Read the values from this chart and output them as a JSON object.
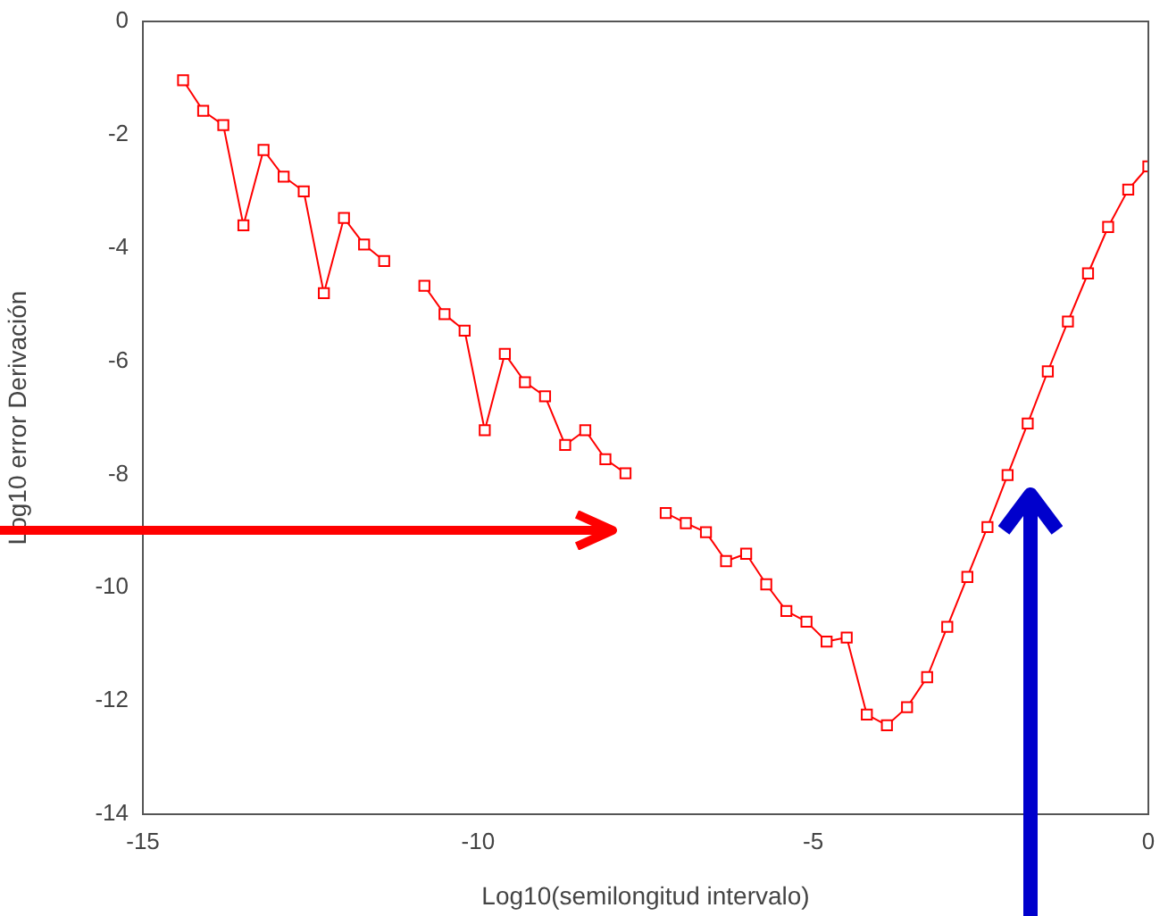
{
  "chart_data": {
    "type": "line",
    "xlabel": "Log10(semilongitud intervalo)",
    "ylabel": "Log10 error Derivación",
    "x": [
      -14.4,
      -14.1,
      -13.8,
      -13.5,
      -13.2,
      -12.9,
      -12.6,
      -12.3,
      -12.0,
      -11.7,
      -11.4,
      -11.1,
      -10.8,
      -10.5,
      -10.2,
      -9.9,
      -9.6,
      -9.3,
      -9.0,
      -8.7,
      -8.4,
      -8.1,
      -7.8,
      -7.5,
      -7.2,
      -6.9,
      -6.6,
      -6.3,
      -6.0,
      -5.7,
      -5.4,
      -5.1,
      -4.8,
      -4.5,
      -4.2,
      -3.9,
      -3.6,
      -3.3,
      -3.0,
      -2.7,
      -2.4,
      -2.1,
      -1.8,
      -1.5,
      -1.2,
      -0.9,
      -0.6,
      -0.3,
      0.0
    ],
    "series": [
      {
        "color": "#ff0000",
        "values": [
          -1.04,
          -1.58,
          -1.83,
          -3.6,
          -2.27,
          -2.74,
          -3.0,
          -4.8,
          -3.47,
          -3.94,
          -4.23,
          null,
          -4.67,
          -5.17,
          -5.46,
          -7.22,
          -5.87,
          -6.37,
          -6.62,
          -7.48,
          -7.22,
          -7.73,
          -7.98,
          null,
          -8.68,
          -8.86,
          -9.02,
          -9.53,
          -9.4,
          -9.94,
          -10.41,
          -10.6,
          -10.95,
          -10.88,
          -12.24,
          -12.43,
          -12.11,
          -11.58,
          -10.69,
          -9.81,
          -8.93,
          -8.01,
          -7.1,
          -6.18,
          -5.3,
          -4.45,
          -3.63,
          -2.97,
          -2.56
        ]
      }
    ],
    "xlim": [
      -15,
      0
    ],
    "xticks": [
      -15,
      -10,
      -5,
      0
    ],
    "ylim": [
      -14,
      0
    ],
    "yticks": [
      -14,
      -12,
      -10,
      -8,
      -6,
      -4,
      -2,
      0
    ],
    "grid": false,
    "legend": false,
    "marker": "square",
    "line_style": "solid"
  }
}
